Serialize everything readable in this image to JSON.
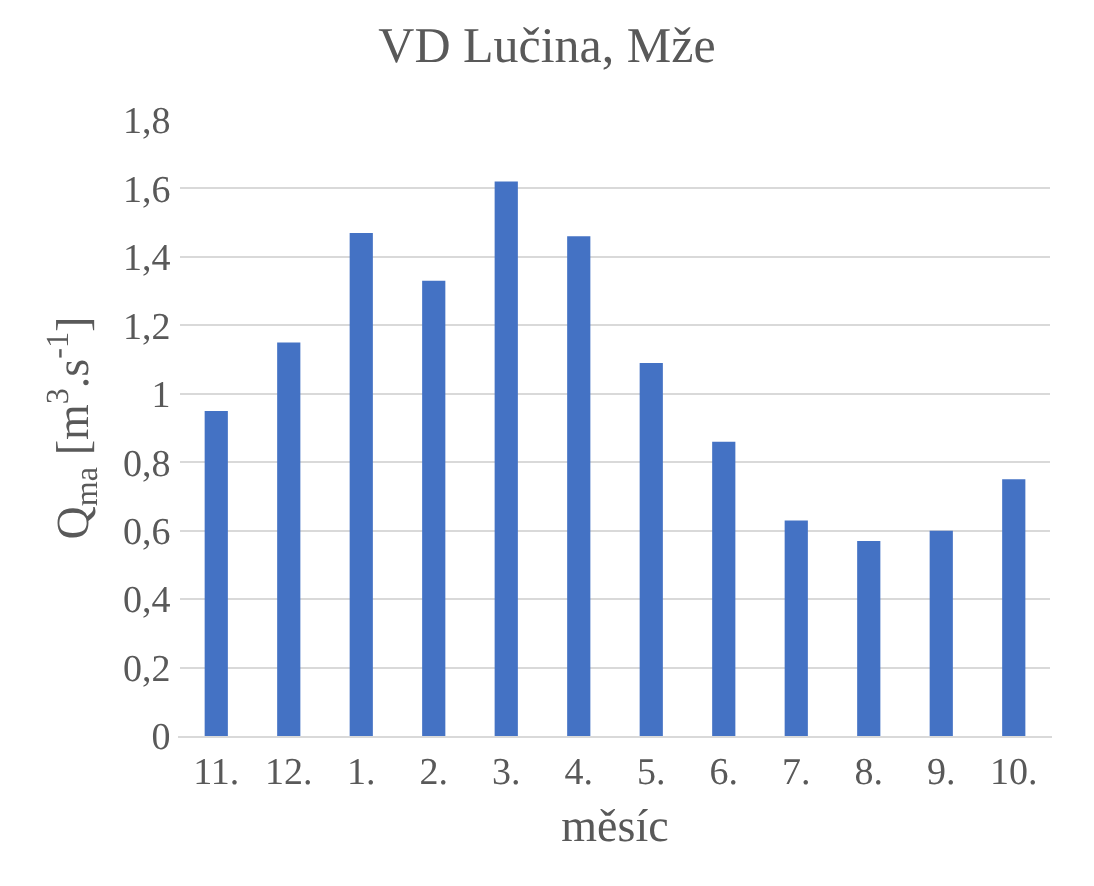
{
  "chart_data": {
    "type": "bar",
    "title": "VD Lučina, Mže",
    "xlabel": "měsíc",
    "ylabel": "Q$_{ma}$ [m$^{3}$.s$^{-1}$]",
    "categories": [
      "11.",
      "12.",
      "1.",
      "2.",
      "3.",
      "4.",
      "5.",
      "6.",
      "7.",
      "8.",
      "9.",
      "10."
    ],
    "values": [
      0.95,
      1.15,
      1.47,
      1.33,
      1.62,
      1.46,
      1.09,
      0.86,
      0.63,
      0.57,
      0.6,
      0.75
    ],
    "color": "#4472c4",
    "ylim": [
      0,
      1.8
    ],
    "yticks": [
      0,
      {
        "value": 0.2,
        "label": "0,2"
      },
      {
        "value": 0.4,
        "label": "0,4"
      },
      {
        "value": 0.6,
        "label": "0,6"
      },
      {
        "value": 0.8,
        "label": "0,8"
      },
      1,
      {
        "value": 1.2,
        "label": "1,2"
      },
      {
        "value": 1.4,
        "label": "1,4"
      },
      {
        "value": 1.6,
        "label": "1,6"
      },
      {
        "value": 1.8,
        "label": "1,8"
      }
    ],
    "grid": "y"
  }
}
